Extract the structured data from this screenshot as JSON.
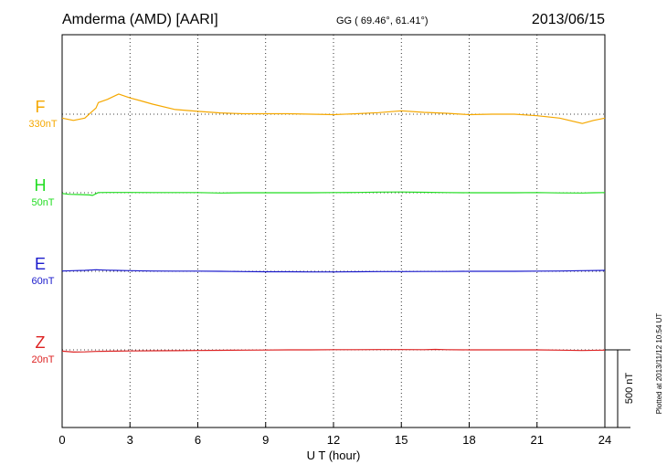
{
  "header": {
    "station": "Amderma (AMD)  [AARI]",
    "coords": "GG ( 69.46°,  61.41°)",
    "date": "2013/06/15"
  },
  "footer": {
    "plotted": "Plotted at 2013/11/12 10:54 UT"
  },
  "chart_data": {
    "type": "line",
    "xlabel": "U T (hour)",
    "xlim": [
      0,
      24
    ],
    "x_ticks": [
      0,
      3,
      6,
      9,
      12,
      15,
      18,
      21,
      24
    ],
    "grid": "dotted vertical every 3 hours, dotted baseline per component",
    "scale_bar": {
      "label": "500 nT",
      "value": 500
    },
    "series": [
      {
        "name": "F",
        "scale": "330nT",
        "color": "#f5a800",
        "x": [
          0,
          0.5,
          1,
          1.5,
          1.6,
          2,
          2.5,
          3,
          3.5,
          4,
          5,
          6,
          7,
          8,
          9,
          10,
          11,
          12,
          13,
          14,
          15,
          16,
          17,
          18,
          19,
          20,
          21,
          22,
          23,
          23.5,
          24
        ],
        "values": [
          -25,
          -40,
          -25,
          40,
          75,
          95,
          130,
          105,
          85,
          65,
          30,
          18,
          8,
          3,
          3,
          3,
          0,
          -3,
          3,
          10,
          22,
          12,
          6,
          -3,
          0,
          0,
          -10,
          -25,
          -60,
          -40,
          -25
        ]
      },
      {
        "name": "H",
        "scale": "50nT",
        "color": "#22dd22",
        "x": [
          0,
          0.3,
          0.8,
          1.2,
          1.35,
          1.6,
          2,
          3,
          4,
          5,
          6,
          7,
          8,
          9,
          10,
          11,
          12,
          13,
          14,
          15,
          16,
          17,
          18,
          19,
          20,
          21,
          22,
          23,
          23.5,
          24
        ],
        "values": [
          -5,
          -10,
          -12,
          -14,
          -17,
          1,
          2,
          2,
          1,
          1,
          1,
          -2,
          0,
          0,
          0,
          0,
          1,
          2,
          4,
          5,
          3,
          1,
          0,
          0,
          0,
          1,
          -1,
          -2,
          0,
          1
        ]
      },
      {
        "name": "E",
        "scale": "60nT",
        "color": "#1a1acc",
        "x": [
          0,
          0.5,
          1,
          1.5,
          2,
          3,
          4,
          5,
          6,
          7,
          8,
          9,
          10,
          11,
          12,
          13,
          14,
          15,
          16,
          17,
          18,
          19,
          20,
          21,
          22,
          23,
          24
        ],
        "values": [
          2,
          4,
          6,
          10,
          7,
          4,
          2,
          1,
          1,
          0,
          -2,
          -3,
          -3,
          -4,
          -4,
          -3,
          -2,
          -2,
          -1,
          -1,
          0,
          0,
          0,
          1,
          2,
          4,
          6
        ]
      },
      {
        "name": "Z",
        "scale": "20nT",
        "color": "#dd2222",
        "x": [
          0,
          0.5,
          1,
          1.5,
          2,
          3,
          4,
          5,
          6,
          7,
          8,
          9,
          10,
          11,
          12,
          13,
          14,
          15,
          16,
          16.5,
          17,
          18,
          19,
          20,
          21,
          22,
          23,
          24
        ],
        "values": [
          -8,
          -14,
          -13,
          -10,
          -9,
          -7,
          -6,
          -5,
          -4,
          -3,
          -2,
          -1,
          0,
          0,
          1,
          1,
          2,
          2,
          1,
          3,
          1,
          0,
          0,
          0,
          0,
          -2,
          -4,
          -2
        ]
      }
    ]
  }
}
